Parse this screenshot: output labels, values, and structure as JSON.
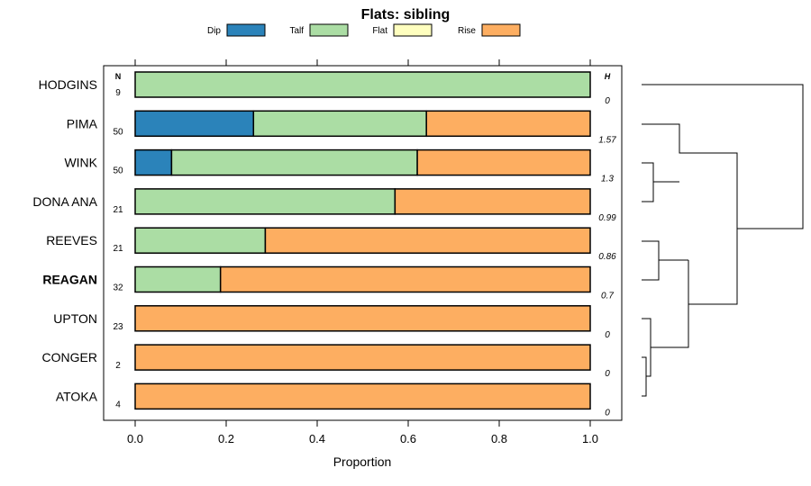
{
  "chart_data": {
    "type": "bar",
    "stacked": true,
    "orientation": "horizontal",
    "title": "Flats: sibling",
    "xlabel": "Proportion",
    "xlim": [
      0,
      1
    ],
    "xticks": [
      "0.0",
      "0.2",
      "0.4",
      "0.6",
      "0.8",
      "1.0"
    ],
    "n_header": "N",
    "h_header": "H",
    "legend": [
      {
        "name": "Dip",
        "color": "#2b83ba"
      },
      {
        "name": "Talf",
        "color": "#abdda4"
      },
      {
        "name": "Flat",
        "color": "#ffffbf"
      },
      {
        "name": "Rise",
        "color": "#fdae61"
      }
    ],
    "rows": [
      {
        "label": "HODGINS",
        "n": "9",
        "h": "0",
        "bold": false,
        "values": [
          0,
          1.0,
          0,
          0
        ]
      },
      {
        "label": "PIMA",
        "n": "50",
        "h": "1.57",
        "bold": false,
        "values": [
          0.26,
          0.38,
          0,
          0.36
        ]
      },
      {
        "label": "WINK",
        "n": "50",
        "h": "1.3",
        "bold": false,
        "values": [
          0.08,
          0.54,
          0,
          0.38
        ]
      },
      {
        "label": "DONA ANA",
        "n": "21",
        "h": "0.99",
        "bold": false,
        "values": [
          0,
          0.571,
          0,
          0.429
        ]
      },
      {
        "label": "REEVES",
        "n": "21",
        "h": "0.86",
        "bold": false,
        "values": [
          0,
          0.286,
          0,
          0.714
        ]
      },
      {
        "label": "REAGAN",
        "n": "32",
        "h": "0.7",
        "bold": true,
        "values": [
          0,
          0.1875,
          0,
          0.8125
        ]
      },
      {
        "label": "UPTON",
        "n": "23",
        "h": "0",
        "bold": false,
        "values": [
          0,
          0,
          0,
          1.0
        ]
      },
      {
        "label": "CONGER",
        "n": "2",
        "h": "0",
        "bold": false,
        "values": [
          0,
          0,
          0,
          1.0
        ]
      },
      {
        "label": "ATOKA",
        "n": "4",
        "h": "0",
        "bold": false,
        "values": [
          0,
          0,
          0,
          1.0
        ]
      }
    ]
  }
}
